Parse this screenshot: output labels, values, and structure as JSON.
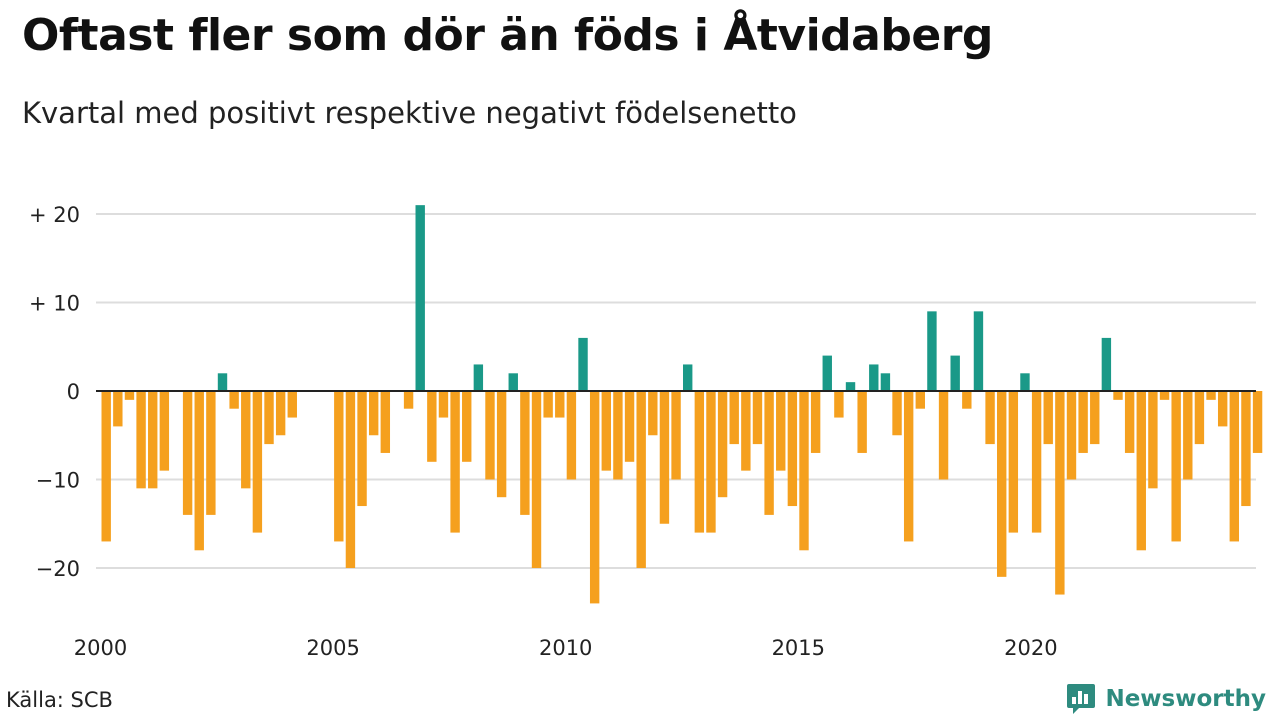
{
  "title": "Oftast fler som dör än föds i Åtvidaberg",
  "subtitle": "Kvartal med positivt respektive negativt födelsenetto",
  "source": "Källa: SCB",
  "brand": {
    "name": "Newsworthy",
    "icon": "newsworthy-logo-icon"
  },
  "colors": {
    "positive": "#1a9988",
    "negative": "#f5a01e",
    "grid": "#dddddd",
    "zero": "#222222"
  },
  "chart_data": {
    "type": "bar",
    "title": "",
    "xlabel": "",
    "ylabel": "",
    "x_start": "2000 Q1",
    "x_ticks": [
      {
        "label": "2000",
        "quarter_index": 0
      },
      {
        "label": "2005",
        "quarter_index": 20
      },
      {
        "label": "2010",
        "quarter_index": 40
      },
      {
        "label": "2015",
        "quarter_index": 60
      },
      {
        "label": "2020",
        "quarter_index": 80
      }
    ],
    "y_ticks": [
      {
        "value": 20,
        "label": "+ 20"
      },
      {
        "value": 10,
        "label": "+ 10"
      },
      {
        "value": 0,
        "label": "0"
      },
      {
        "value": -10,
        "label": "−10"
      },
      {
        "value": -20,
        "label": "−20"
      }
    ],
    "ylim": [
      -25,
      22
    ],
    "grid": true,
    "legend": "none",
    "values": [
      -17,
      -4,
      -1,
      -11,
      -11,
      -9,
      null,
      -14,
      -18,
      -14,
      2,
      -2,
      -11,
      -16,
      -6,
      -5,
      -3,
      null,
      null,
      null,
      -17,
      -20,
      -13,
      -5,
      -7,
      null,
      -2,
      21,
      -8,
      -3,
      -16,
      -8,
      3,
      -10,
      -12,
      2,
      -14,
      -20,
      -3,
      -3,
      -10,
      6,
      -24,
      -9,
      -10,
      -8,
      -20,
      -5,
      -15,
      -10,
      3,
      -16,
      -16,
      -12,
      -6,
      -9,
      -6,
      -14,
      -9,
      -13,
      -18,
      -7,
      4,
      -3,
      1,
      -7,
      3,
      2,
      -5,
      -17,
      -2,
      9,
      -10,
      4,
      -2,
      9,
      -6,
      -21,
      -16,
      2,
      -16,
      -6,
      -23,
      -10,
      -7,
      -6,
      6,
      -1,
      -7,
      -18,
      -11,
      -1,
      -17,
      -10,
      -6,
      -1,
      -4,
      -17,
      -13,
      -7
    ]
  }
}
